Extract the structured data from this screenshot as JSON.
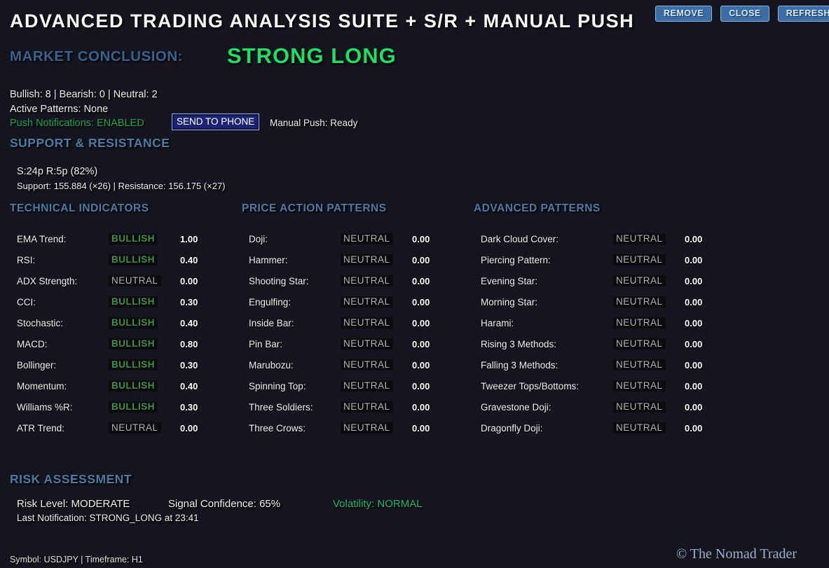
{
  "header": {
    "title": "ADVANCED TRADING ANALYSIS SUITE + S/R + MANUAL PUSH",
    "buttons": {
      "remove": "REMOVE",
      "close": "CLOSE",
      "refresh": "REFRESH"
    }
  },
  "conclusion": {
    "label": "MARKET CONCLUSION:",
    "value": "STRONG LONG"
  },
  "summary": {
    "counts": "Bullish: 8 | Bearish: 0 | Neutral: 2",
    "active_patterns": "Active Patterns: None",
    "push_notifications": "Push Notifications: ENABLED",
    "send_button": "SEND TO PHONE",
    "manual_push": "Manual Push: Ready"
  },
  "support_resistance": {
    "title": "SUPPORT & RESISTANCE",
    "summary": "S:24p R:5p (82%)",
    "detail": "Support: 155.884 (×26) | Resistance: 156.175 (×27)"
  },
  "columns": [
    {
      "title": "TECHNICAL INDICATORS",
      "rows": [
        {
          "label": "EMA Trend:",
          "status": "BULLISH",
          "value": "1.00"
        },
        {
          "label": "RSI:",
          "status": "BULLISH",
          "value": "0.40"
        },
        {
          "label": "ADX Strength:",
          "status": "NEUTRAL",
          "value": "0.00"
        },
        {
          "label": "CCI:",
          "status": "BULLISH",
          "value": "0.30"
        },
        {
          "label": "Stochastic:",
          "status": "BULLISH",
          "value": "0.40"
        },
        {
          "label": "MACD:",
          "status": "BULLISH",
          "value": "0.80"
        },
        {
          "label": "Bollinger:",
          "status": "BULLISH",
          "value": "0.30"
        },
        {
          "label": "Momentum:",
          "status": "BULLISH",
          "value": "0.40"
        },
        {
          "label": "Williams %R:",
          "status": "BULLISH",
          "value": "0.30"
        },
        {
          "label": "ATR Trend:",
          "status": "NEUTRAL",
          "value": "0.00"
        }
      ]
    },
    {
      "title": "PRICE ACTION PATTERNS",
      "rows": [
        {
          "label": "Doji:",
          "status": "NEUTRAL",
          "value": "0.00"
        },
        {
          "label": "Hammer:",
          "status": "NEUTRAL",
          "value": "0.00"
        },
        {
          "label": "Shooting Star:",
          "status": "NEUTRAL",
          "value": "0.00"
        },
        {
          "label": "Engulfing:",
          "status": "NEUTRAL",
          "value": "0.00"
        },
        {
          "label": "Inside Bar:",
          "status": "NEUTRAL",
          "value": "0.00"
        },
        {
          "label": "Pin Bar:",
          "status": "NEUTRAL",
          "value": "0.00"
        },
        {
          "label": "Marubozu:",
          "status": "NEUTRAL",
          "value": "0.00"
        },
        {
          "label": "Spinning Top:",
          "status": "NEUTRAL",
          "value": "0.00"
        },
        {
          "label": "Three Soldiers:",
          "status": "NEUTRAL",
          "value": "0.00"
        },
        {
          "label": "Three Crows:",
          "status": "NEUTRAL",
          "value": "0.00"
        }
      ]
    },
    {
      "title": "ADVANCED PATTERNS",
      "rows": [
        {
          "label": "Dark Cloud Cover:",
          "status": "NEUTRAL",
          "value": "0.00"
        },
        {
          "label": "Piercing Pattern:",
          "status": "NEUTRAL",
          "value": "0.00"
        },
        {
          "label": "Evening Star:",
          "status": "NEUTRAL",
          "value": "0.00"
        },
        {
          "label": "Morning Star:",
          "status": "NEUTRAL",
          "value": "0.00"
        },
        {
          "label": "Harami:",
          "status": "NEUTRAL",
          "value": "0.00"
        },
        {
          "label": "Rising 3 Methods:",
          "status": "NEUTRAL",
          "value": "0.00"
        },
        {
          "label": "Falling 3 Methods:",
          "status": "NEUTRAL",
          "value": "0.00"
        },
        {
          "label": "Tweezer Tops/Bottoms:",
          "status": "NEUTRAL",
          "value": "0.00"
        },
        {
          "label": "Gravestone Doji:",
          "status": "NEUTRAL",
          "value": "0.00"
        },
        {
          "label": "Dragonfly Doji:",
          "status": "NEUTRAL",
          "value": "0.00"
        }
      ]
    }
  ],
  "risk": {
    "title": "RISK ASSESSMENT",
    "risk_level": "Risk Level: MODERATE",
    "signal_confidence": "Signal Confidence: 65%",
    "volatility": "Volatility: NORMAL",
    "last_notification": "Last Notification: STRONG_LONG at 23:41"
  },
  "footer": {
    "symbol_info": "Symbol: USDJPY | Timeframe: H1",
    "watermark": "© The Nomad Trader"
  },
  "colors": {
    "background": "#14151e",
    "accent_blue": "#4d7ba6",
    "conclusion_green": "#21dd63",
    "push_green": "#14a85e",
    "bullish_green": "#3f9349",
    "neutral_gray": "#b4b4bc",
    "button_blue": "#3a6ea5",
    "send_button_navy": "#1d2370"
  }
}
